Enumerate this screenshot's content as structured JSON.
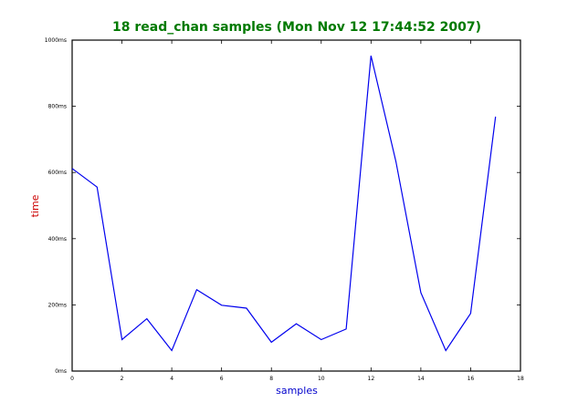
{
  "chart_data": {
    "type": "line",
    "title": "18 read_chan samples (Mon Nov 12 17:44:52 2007)",
    "xlabel": "samples",
    "ylabel": "time",
    "xlim": [
      0,
      18
    ],
    "ylim": [
      0,
      1000
    ],
    "x_ticks": [
      "0",
      "2",
      "4",
      "6",
      "8",
      "10",
      "12",
      "14",
      "16",
      "18"
    ],
    "y_ticks": [
      "0ms",
      "200ms",
      "400ms",
      "600ms",
      "800ms",
      "1000ms"
    ],
    "grid": false,
    "series": [
      {
        "x": [
          0,
          1,
          2,
          3,
          4,
          5,
          6,
          7,
          8,
          9,
          10,
          11,
          12,
          13,
          14,
          15,
          16,
          17
        ],
        "values": [
          612,
          556,
          95,
          158,
          62,
          246,
          199,
          190,
          87,
          143,
          95,
          127,
          953,
          633,
          237,
          62,
          174,
          769
        ]
      }
    ],
    "colors": {
      "title": "#007a00",
      "xlabel": "#0000cc",
      "ylabel": "#cc0000",
      "line": "#0000ee"
    }
  }
}
